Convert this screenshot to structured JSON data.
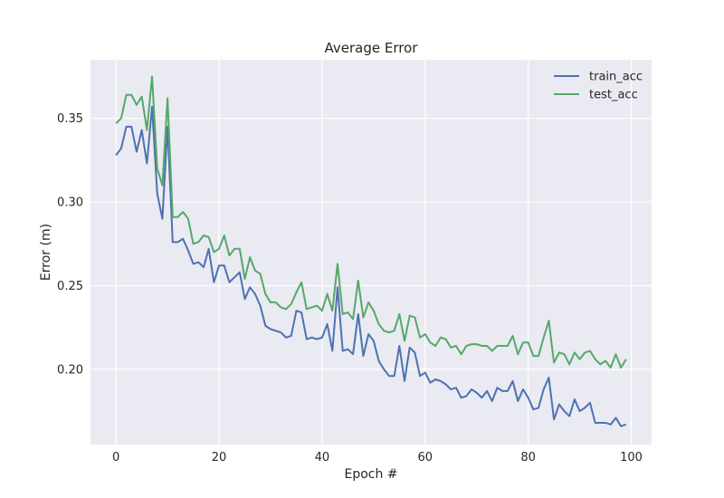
{
  "chart_data": {
    "type": "line",
    "title": "Average Error",
    "xlabel": "Epoch #",
    "ylabel": "Error (m)",
    "xlim": [
      -4.95,
      103.95
    ],
    "ylim": [
      0.155,
      0.385
    ],
    "xticks": [
      0,
      20,
      40,
      60,
      80,
      100
    ],
    "yticks": [
      0.2,
      0.25,
      0.3,
      0.35
    ],
    "xtick_labels": [
      "0",
      "20",
      "40",
      "60",
      "80",
      "100"
    ],
    "ytick_labels": [
      "0.20",
      "0.25",
      "0.30",
      "0.35"
    ],
    "grid": true,
    "legend_position": "top-right",
    "x": [
      0,
      1,
      2,
      3,
      4,
      5,
      6,
      7,
      8,
      9,
      10,
      11,
      12,
      13,
      14,
      15,
      16,
      17,
      18,
      19,
      20,
      21,
      22,
      23,
      24,
      25,
      26,
      27,
      28,
      29,
      30,
      31,
      32,
      33,
      34,
      35,
      36,
      37,
      38,
      39,
      40,
      41,
      42,
      43,
      44,
      45,
      46,
      47,
      48,
      49,
      50,
      51,
      52,
      53,
      54,
      55,
      56,
      57,
      58,
      59,
      60,
      61,
      62,
      63,
      64,
      65,
      66,
      67,
      68,
      69,
      70,
      71,
      72,
      73,
      74,
      75,
      76,
      77,
      78,
      79,
      80,
      81,
      82,
      83,
      84,
      85,
      86,
      87,
      88,
      89,
      90,
      91,
      92,
      93,
      94,
      95,
      96,
      97,
      98,
      99
    ],
    "series": [
      {
        "name": "train_acc",
        "color": "#4c72b0",
        "values": [
          0.328,
          0.332,
          0.345,
          0.345,
          0.33,
          0.343,
          0.323,
          0.357,
          0.305,
          0.29,
          0.345,
          0.276,
          0.276,
          0.278,
          0.271,
          0.263,
          0.264,
          0.261,
          0.272,
          0.252,
          0.262,
          0.262,
          0.252,
          0.255,
          0.258,
          0.242,
          0.249,
          0.245,
          0.238,
          0.226,
          0.224,
          0.223,
          0.222,
          0.219,
          0.22,
          0.235,
          0.234,
          0.218,
          0.219,
          0.218,
          0.219,
          0.227,
          0.211,
          0.249,
          0.211,
          0.212,
          0.209,
          0.233,
          0.208,
          0.221,
          0.217,
          0.205,
          0.2,
          0.196,
          0.196,
          0.214,
          0.193,
          0.213,
          0.21,
          0.196,
          0.198,
          0.192,
          0.194,
          0.193,
          0.191,
          0.188,
          0.189,
          0.183,
          0.184,
          0.188,
          0.186,
          0.183,
          0.187,
          0.181,
          0.189,
          0.187,
          0.187,
          0.193,
          0.181,
          0.188,
          0.183,
          0.176,
          0.177,
          0.188,
          0.195,
          0.17,
          0.179,
          0.175,
          0.172,
          0.182,
          0.175,
          0.177,
          0.18,
          0.168,
          0.168,
          0.168,
          0.167,
          0.171,
          0.166,
          0.167
        ]
      },
      {
        "name": "test_acc",
        "color": "#55a868",
        "values": [
          0.347,
          0.35,
          0.364,
          0.364,
          0.358,
          0.363,
          0.343,
          0.375,
          0.32,
          0.31,
          0.362,
          0.291,
          0.291,
          0.294,
          0.29,
          0.275,
          0.276,
          0.28,
          0.279,
          0.27,
          0.272,
          0.28,
          0.268,
          0.272,
          0.272,
          0.254,
          0.267,
          0.259,
          0.257,
          0.245,
          0.24,
          0.24,
          0.237,
          0.236,
          0.239,
          0.246,
          0.252,
          0.236,
          0.237,
          0.238,
          0.235,
          0.245,
          0.235,
          0.263,
          0.233,
          0.234,
          0.23,
          0.253,
          0.231,
          0.24,
          0.235,
          0.227,
          0.223,
          0.222,
          0.223,
          0.233,
          0.217,
          0.232,
          0.231,
          0.219,
          0.221,
          0.216,
          0.214,
          0.219,
          0.218,
          0.213,
          0.214,
          0.209,
          0.214,
          0.215,
          0.215,
          0.214,
          0.214,
          0.211,
          0.214,
          0.214,
          0.214,
          0.22,
          0.209,
          0.216,
          0.216,
          0.208,
          0.208,
          0.219,
          0.229,
          0.204,
          0.21,
          0.209,
          0.203,
          0.21,
          0.206,
          0.21,
          0.211,
          0.206,
          0.203,
          0.205,
          0.201,
          0.209,
          0.201,
          0.206
        ]
      }
    ]
  }
}
